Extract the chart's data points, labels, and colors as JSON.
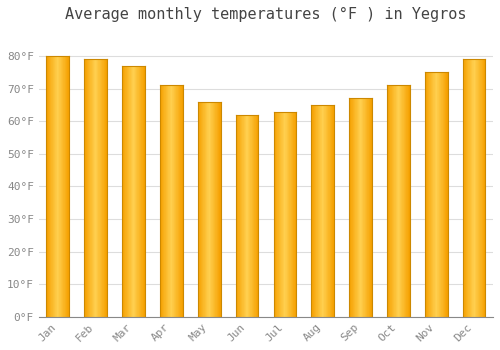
{
  "title": "Average monthly temperatures (°F ) in Yegros",
  "months": [
    "Jan",
    "Feb",
    "Mar",
    "Apr",
    "May",
    "Jun",
    "Jul",
    "Aug",
    "Sep",
    "Oct",
    "Nov",
    "Dec"
  ],
  "values": [
    80,
    79,
    77,
    71,
    66,
    62,
    63,
    65,
    67,
    71,
    75,
    79
  ],
  "bar_color_center": "#FFD050",
  "bar_color_edge": "#F5A000",
  "background_color": "#FFFFFF",
  "grid_color": "#DDDDDD",
  "ylim": [
    0,
    88
  ],
  "yticks": [
    0,
    10,
    20,
    30,
    40,
    50,
    60,
    70,
    80
  ],
  "ytick_labels": [
    "0°F",
    "10°F",
    "20°F",
    "30°F",
    "40°F",
    "50°F",
    "60°F",
    "70°F",
    "80°F"
  ],
  "title_fontsize": 11,
  "tick_fontsize": 8,
  "title_color": "#444444",
  "tick_color": "#888888",
  "font_family": "monospace"
}
